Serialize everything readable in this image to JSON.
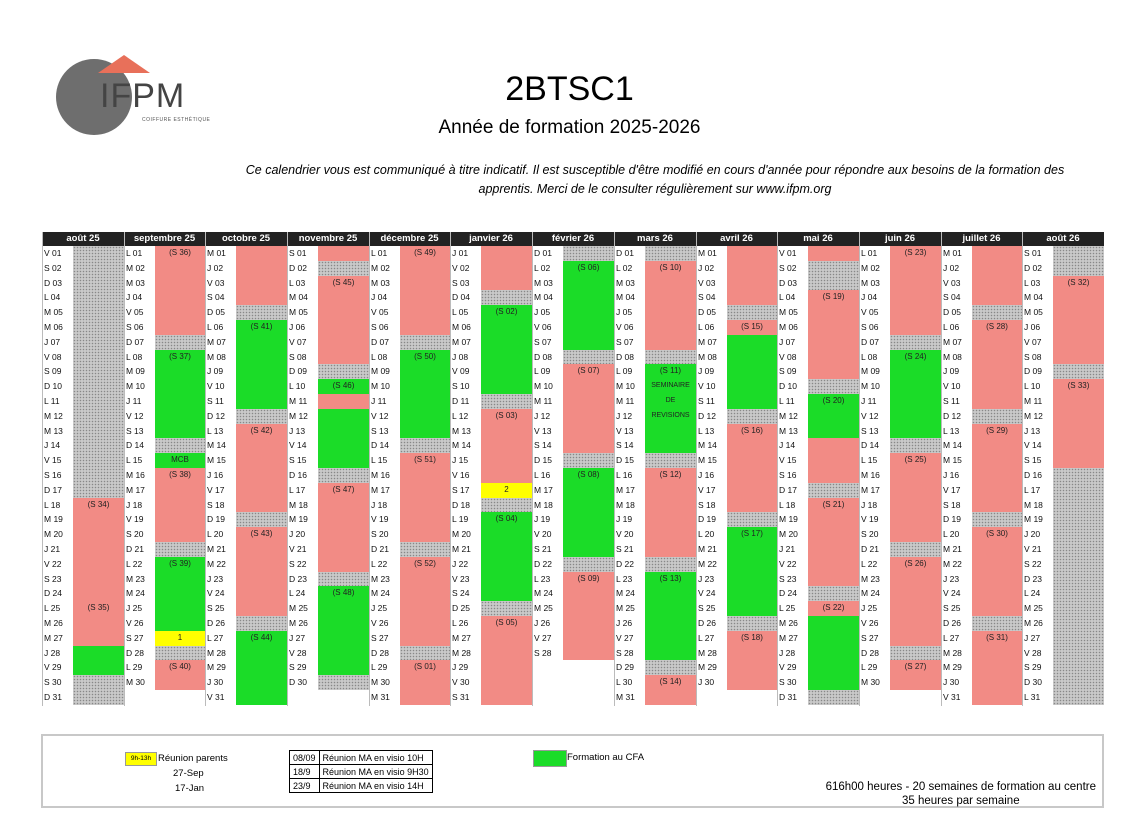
{
  "header": {
    "logo_text": "IFPM",
    "logo_tagline": "COIFFURE ESTHÉTIQUE",
    "title": "2BTSC1",
    "subtitle": "Année de formation 2025-2026",
    "disclaimer": "Ce calendrier vous est communiqué à titre indicatif. Il est susceptible d'être modifié en cours d'année pour répondre aux besoins de la formation des apprentis. Merci de le consulter régulièrement sur www.ifpm.org"
  },
  "calendar": {
    "months": [
      {
        "name": "août 25",
        "start": 5,
        "days": 31,
        "blocks": [
          {
            "s": 1,
            "e": 17,
            "c": "grey"
          },
          {
            "s": 18,
            "e": 24,
            "c": "red",
            "label": "(S 34)"
          },
          {
            "s": 25,
            "e": 26,
            "c": "red",
            "label": "(S 35)"
          },
          {
            "s": 27,
            "e": 27,
            "c": "red"
          },
          {
            "s": 28,
            "e": 29,
            "c": "green"
          },
          {
            "s": 30,
            "e": 31,
            "c": "grey"
          }
        ]
      },
      {
        "name": "septembre 25",
        "start": 1,
        "days": 30,
        "blocks": [
          {
            "s": 1,
            "e": 6,
            "c": "red",
            "label": "(S 36)"
          },
          {
            "s": 7,
            "e": 7,
            "c": "grey"
          },
          {
            "s": 8,
            "e": 13,
            "c": "green",
            "label": "(S 37)"
          },
          {
            "s": 14,
            "e": 14,
            "c": "grey"
          },
          {
            "s": 15,
            "e": 15,
            "c": "green",
            "label": "MCB"
          },
          {
            "s": 16,
            "e": 20,
            "c": "red",
            "label": "(S 38)"
          },
          {
            "s": 21,
            "e": 21,
            "c": "grey"
          },
          {
            "s": 22,
            "e": 26,
            "c": "green",
            "label": "(S 39)"
          },
          {
            "s": 27,
            "e": 27,
            "c": "yellow",
            "label": "1"
          },
          {
            "s": 28,
            "e": 28,
            "c": "grey"
          },
          {
            "s": 29,
            "e": 30,
            "c": "red",
            "label": "(S 40)"
          }
        ]
      },
      {
        "name": "octobre 25",
        "start": 3,
        "days": 31,
        "blocks": [
          {
            "s": 1,
            "e": 4,
            "c": "red"
          },
          {
            "s": 5,
            "e": 5,
            "c": "grey"
          },
          {
            "s": 6,
            "e": 11,
            "c": "green",
            "label": "(S 41)"
          },
          {
            "s": 12,
            "e": 12,
            "c": "grey"
          },
          {
            "s": 13,
            "e": 18,
            "c": "red",
            "label": "(S 42)"
          },
          {
            "s": 19,
            "e": 19,
            "c": "grey"
          },
          {
            "s": 20,
            "e": 25,
            "c": "red",
            "label": "(S 43)"
          },
          {
            "s": 26,
            "e": 26,
            "c": "grey"
          },
          {
            "s": 27,
            "e": 31,
            "c": "green",
            "label": "(S 44)"
          }
        ]
      },
      {
        "name": "novembre 25",
        "start": 6,
        "days": 30,
        "blocks": [
          {
            "s": 1,
            "e": 1,
            "c": "red"
          },
          {
            "s": 2,
            "e": 2,
            "c": "grey"
          },
          {
            "s": 3,
            "e": 8,
            "c": "red",
            "label": "(S 45)"
          },
          {
            "s": 9,
            "e": 9,
            "c": "grey"
          },
          {
            "s": 10,
            "e": 10,
            "c": "green",
            "label": "(S 46)"
          },
          {
            "s": 11,
            "e": 11,
            "c": "red"
          },
          {
            "s": 12,
            "e": 15,
            "c": "green"
          },
          {
            "s": 16,
            "e": 16,
            "c": "grey"
          },
          {
            "s": 17,
            "e": 22,
            "c": "red",
            "label": "(S 47)"
          },
          {
            "s": 23,
            "e": 23,
            "c": "grey"
          },
          {
            "s": 24,
            "e": 29,
            "c": "green",
            "label": "(S 48)"
          },
          {
            "s": 30,
            "e": 30,
            "c": "grey"
          }
        ]
      },
      {
        "name": "décembre 25",
        "start": 1,
        "days": 31,
        "blocks": [
          {
            "s": 1,
            "e": 6,
            "c": "red",
            "label": "(S 49)"
          },
          {
            "s": 7,
            "e": 7,
            "c": "grey"
          },
          {
            "s": 8,
            "e": 13,
            "c": "green",
            "label": "(S 50)"
          },
          {
            "s": 14,
            "e": 14,
            "c": "grey"
          },
          {
            "s": 15,
            "e": 20,
            "c": "red",
            "label": "(S 51)"
          },
          {
            "s": 21,
            "e": 21,
            "c": "grey"
          },
          {
            "s": 22,
            "e": 27,
            "c": "red",
            "label": "(S 52)"
          },
          {
            "s": 28,
            "e": 28,
            "c": "grey"
          },
          {
            "s": 29,
            "e": 31,
            "c": "red",
            "label": "(S 01)"
          }
        ]
      },
      {
        "name": "janvier 26",
        "start": 4,
        "days": 31,
        "blocks": [
          {
            "s": 1,
            "e": 3,
            "c": "red"
          },
          {
            "s": 4,
            "e": 4,
            "c": "grey"
          },
          {
            "s": 5,
            "e": 10,
            "c": "green",
            "label": "(S 02)"
          },
          {
            "s": 11,
            "e": 11,
            "c": "grey"
          },
          {
            "s": 12,
            "e": 16,
            "c": "red",
            "label": "(S 03)"
          },
          {
            "s": 17,
            "e": 17,
            "c": "yellow",
            "label": "2"
          },
          {
            "s": 18,
            "e": 18,
            "c": "grey"
          },
          {
            "s": 19,
            "e": 24,
            "c": "green",
            "label": "(S 04)"
          },
          {
            "s": 25,
            "e": 25,
            "c": "grey"
          },
          {
            "s": 26,
            "e": 31,
            "c": "red",
            "label": "(S 05)"
          }
        ]
      },
      {
        "name": "février 26",
        "start": 0,
        "days": 28,
        "blocks": [
          {
            "s": 1,
            "e": 1,
            "c": "grey"
          },
          {
            "s": 2,
            "e": 7,
            "c": "green",
            "label": "(S 06)"
          },
          {
            "s": 8,
            "e": 8,
            "c": "grey"
          },
          {
            "s": 9,
            "e": 14,
            "c": "red",
            "label": "(S 07)"
          },
          {
            "s": 15,
            "e": 15,
            "c": "grey"
          },
          {
            "s": 16,
            "e": 21,
            "c": "green",
            "label": "(S 08)"
          },
          {
            "s": 22,
            "e": 22,
            "c": "grey"
          },
          {
            "s": 23,
            "e": 28,
            "c": "red",
            "label": "(S 09)"
          }
        ]
      },
      {
        "name": "mars 26",
        "start": 0,
        "days": 31,
        "blocks": [
          {
            "s": 1,
            "e": 1,
            "c": "grey"
          },
          {
            "s": 2,
            "e": 7,
            "c": "red",
            "label": "(S 10)"
          },
          {
            "s": 8,
            "e": 8,
            "c": "grey"
          },
          {
            "s": 9,
            "e": 14,
            "c": "green",
            "label": "(S 11)",
            "extra": "SEMINAIRE DE REVISIONS"
          },
          {
            "s": 15,
            "e": 15,
            "c": "grey"
          },
          {
            "s": 16,
            "e": 21,
            "c": "red",
            "label": "(S 12)"
          },
          {
            "s": 22,
            "e": 22,
            "c": "grey"
          },
          {
            "s": 23,
            "e": 28,
            "c": "green",
            "label": "(S 13)"
          },
          {
            "s": 29,
            "e": 29,
            "c": "grey"
          },
          {
            "s": 30,
            "e": 31,
            "c": "red",
            "label": "(S 14)"
          }
        ]
      },
      {
        "name": "avril 26",
        "start": 3,
        "days": 30,
        "blocks": [
          {
            "s": 1,
            "e": 4,
            "c": "red"
          },
          {
            "s": 5,
            "e": 5,
            "c": "grey"
          },
          {
            "s": 6,
            "e": 6,
            "c": "red",
            "label": "(S 15)"
          },
          {
            "s": 7,
            "e": 11,
            "c": "green"
          },
          {
            "s": 12,
            "e": 12,
            "c": "grey"
          },
          {
            "s": 13,
            "e": 18,
            "c": "red",
            "label": "(S 16)"
          },
          {
            "s": 19,
            "e": 19,
            "c": "grey"
          },
          {
            "s": 20,
            "e": 25,
            "c": "green",
            "label": "(S 17)"
          },
          {
            "s": 26,
            "e": 26,
            "c": "grey"
          },
          {
            "s": 27,
            "e": 30,
            "c": "red",
            "label": "(S 18)"
          }
        ]
      },
      {
        "name": "mai 26",
        "start": 5,
        "days": 31,
        "blocks": [
          {
            "s": 1,
            "e": 1,
            "c": "red"
          },
          {
            "s": 2,
            "e": 3,
            "c": "grey"
          },
          {
            "s": 4,
            "e": 9,
            "c": "red",
            "label": "(S 19)"
          },
          {
            "s": 10,
            "e": 10,
            "c": "grey"
          },
          {
            "s": 11,
            "e": 13,
            "c": "green",
            "label": "(S 20)"
          },
          {
            "s": 14,
            "e": 14,
            "c": "red"
          },
          {
            "s": 15,
            "e": 16,
            "c": "red"
          },
          {
            "s": 17,
            "e": 17,
            "c": "grey"
          },
          {
            "s": 18,
            "e": 23,
            "c": "red",
            "label": "(S 21)"
          },
          {
            "s": 24,
            "e": 24,
            "c": "grey"
          },
          {
            "s": 25,
            "e": 25,
            "c": "red",
            "label": "(S 22)"
          },
          {
            "s": 26,
            "e": 30,
            "c": "green"
          },
          {
            "s": 31,
            "e": 31,
            "c": "grey"
          }
        ]
      },
      {
        "name": "juin 26",
        "start": 1,
        "days": 30,
        "blocks": [
          {
            "s": 1,
            "e": 6,
            "c": "red",
            "label": "(S 23)"
          },
          {
            "s": 7,
            "e": 7,
            "c": "grey"
          },
          {
            "s": 8,
            "e": 13,
            "c": "green",
            "label": "(S 24)"
          },
          {
            "s": 14,
            "e": 14,
            "c": "grey"
          },
          {
            "s": 15,
            "e": 20,
            "c": "red",
            "label": "(S 25)"
          },
          {
            "s": 21,
            "e": 21,
            "c": "grey"
          },
          {
            "s": 22,
            "e": 27,
            "c": "red",
            "label": "(S 26)"
          },
          {
            "s": 28,
            "e": 28,
            "c": "grey"
          },
          {
            "s": 29,
            "e": 30,
            "c": "red",
            "label": "(S 27)"
          }
        ]
      },
      {
        "name": "juillet 26",
        "start": 3,
        "days": 31,
        "blocks": [
          {
            "s": 1,
            "e": 4,
            "c": "red"
          },
          {
            "s": 5,
            "e": 5,
            "c": "grey"
          },
          {
            "s": 6,
            "e": 11,
            "c": "red",
            "label": "(S 28)"
          },
          {
            "s": 12,
            "e": 12,
            "c": "grey"
          },
          {
            "s": 13,
            "e": 18,
            "c": "red",
            "label": "(S 29)"
          },
          {
            "s": 19,
            "e": 19,
            "c": "grey"
          },
          {
            "s": 20,
            "e": 25,
            "c": "red",
            "label": "(S 30)"
          },
          {
            "s": 26,
            "e": 26,
            "c": "grey"
          },
          {
            "s": 27,
            "e": 31,
            "c": "red",
            "label": "(S 31)"
          }
        ]
      },
      {
        "name": "août 26",
        "start": 6,
        "days": 31,
        "blocks": [
          {
            "s": 1,
            "e": 2,
            "c": "grey"
          },
          {
            "s": 3,
            "e": 8,
            "c": "red",
            "label": "(S 32)"
          },
          {
            "s": 9,
            "e": 9,
            "c": "grey"
          },
          {
            "s": 10,
            "e": 15,
            "c": "red",
            "label": "(S 33)"
          },
          {
            "s": 16,
            "e": 31,
            "c": "grey"
          }
        ]
      }
    ],
    "day_letters": [
      "D",
      "L",
      "M",
      "M",
      "J",
      "V",
      "S"
    ]
  },
  "legend": {
    "swatch_text": "9h-13h",
    "parents_label": "Réunion parents",
    "parents_dates": [
      "27-Sep",
      "17-Jan"
    ],
    "ma_meetings": [
      {
        "date": "08/09",
        "desc": "Réunion MA en visio 10H"
      },
      {
        "date": "18/9",
        "desc": "Réunion MA en visio 9H30"
      },
      {
        "date": "23/9",
        "desc": "Réunion MA en visio 14H"
      }
    ],
    "cfa_label": "Formation au CFA",
    "hours_line1": "616h00 heures - 20 semaines de formation au centre",
    "hours_line2": "35 heures par semaine"
  },
  "colors": {
    "red": "#f28b85",
    "green": "#1bdc28",
    "yellow": "#ffff00",
    "header_bg": "#222222",
    "logo_accent": "#e8705a"
  }
}
